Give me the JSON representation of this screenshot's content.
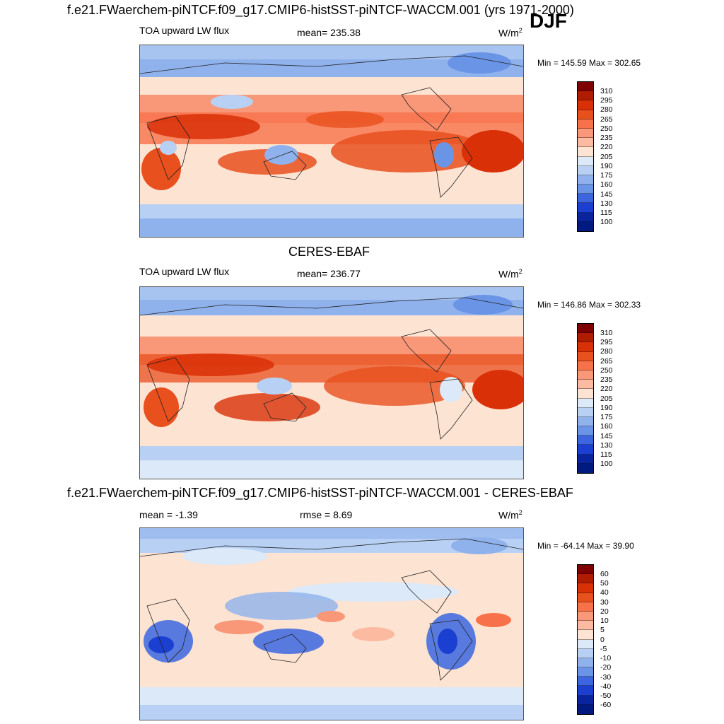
{
  "season": "DJF",
  "panels": [
    {
      "title": "f.e21.FWaerchem-piNTCF.f09_g17.CMIP6-histSST-piNTCF-WACCM.001 (yrs 1971-2000)",
      "left_label": "TOA upward LW flux",
      "center_label": "mean= 235.38",
      "units": "W/m",
      "units_sup": "2",
      "minmax": "Min = 145.59 Max = 302.65",
      "colorbar_ticks": [
        "310",
        "295",
        "280",
        "265",
        "250",
        "235",
        "220",
        "205",
        "190",
        "175",
        "160",
        "145",
        "130",
        "115",
        "100"
      ]
    },
    {
      "title": "CERES-EBAF",
      "left_label": "TOA upward LW flux",
      "center_label": "mean= 236.77",
      "units": "W/m",
      "units_sup": "2",
      "minmax": "Min = 146.86 Max = 302.33",
      "colorbar_ticks": [
        "310",
        "295",
        "280",
        "265",
        "250",
        "235",
        "220",
        "205",
        "190",
        "175",
        "160",
        "145",
        "130",
        "115",
        "100"
      ]
    },
    {
      "title": "f.e21.FWaerchem-piNTCF.f09_g17.CMIP6-histSST-piNTCF-WACCM.001 - CERES-EBAF",
      "left_label": "mean =  -1.39",
      "center_label": "rmse =   8.69",
      "units": "W/m",
      "units_sup": "2",
      "minmax": "Min = -64.14 Max =  39.90",
      "colorbar_ticks": [
        "60",
        "50",
        "40",
        "30",
        "20",
        "10",
        "5",
        "0",
        "-5",
        "-10",
        "-20",
        "-30",
        "-40",
        "-50",
        "-60"
      ]
    }
  ],
  "colors": {
    "abs_scale": [
      "#7f0000",
      "#b01c00",
      "#d93008",
      "#e8501e",
      "#f7724a",
      "#f99878",
      "#fcbba1",
      "#fde3d2",
      "#dbe9f8",
      "#b7d0f3",
      "#8fb1ec",
      "#6a94e6",
      "#3b66e0",
      "#1a3fd1",
      "#0a249e",
      "#001a80"
    ],
    "diff_scale": [
      "#7f0000",
      "#b01c00",
      "#d93008",
      "#e8501e",
      "#f7724a",
      "#f99878",
      "#fcbba1",
      "#fde3d2",
      "#dbe9f8",
      "#b7d0f3",
      "#8fb1ec",
      "#6a94e6",
      "#3b66e0",
      "#1a3fd1",
      "#0a249e",
      "#001a80"
    ]
  }
}
